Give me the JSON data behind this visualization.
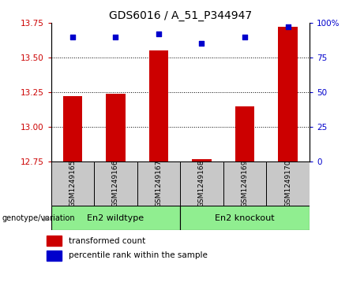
{
  "title": "GDS6016 / A_51_P344947",
  "samples": [
    "GSM1249165",
    "GSM1249166",
    "GSM1249167",
    "GSM1249168",
    "GSM1249169",
    "GSM1249170"
  ],
  "red_values": [
    13.22,
    13.24,
    13.55,
    12.77,
    13.15,
    13.72
  ],
  "blue_values": [
    90,
    90,
    92,
    85,
    90,
    97
  ],
  "ylim_left": [
    12.75,
    13.75
  ],
  "ylim_right": [
    0,
    100
  ],
  "yticks_left": [
    12.75,
    13.0,
    13.25,
    13.5,
    13.75
  ],
  "yticks_right": [
    0,
    25,
    50,
    75,
    100
  ],
  "grid_lines": [
    13.0,
    13.25,
    13.5
  ],
  "group1_label": "En2 wildtype",
  "group2_label": "En2 knockout",
  "group1_indices": [
    0,
    1,
    2
  ],
  "group2_indices": [
    3,
    4,
    5
  ],
  "genotype_label": "genotype/variation",
  "legend_red": "transformed count",
  "legend_blue": "percentile rank within the sample",
  "bar_color": "#cc0000",
  "dot_color": "#0000cc",
  "group_color": "#90ee90",
  "tick_bg_color": "#c8c8c8",
  "left_tick_color": "#cc0000",
  "right_tick_color": "#0000cc",
  "title_fontsize": 10,
  "tick_fontsize": 7.5,
  "sample_fontsize": 6.5,
  "group_fontsize": 8,
  "legend_fontsize": 7.5
}
